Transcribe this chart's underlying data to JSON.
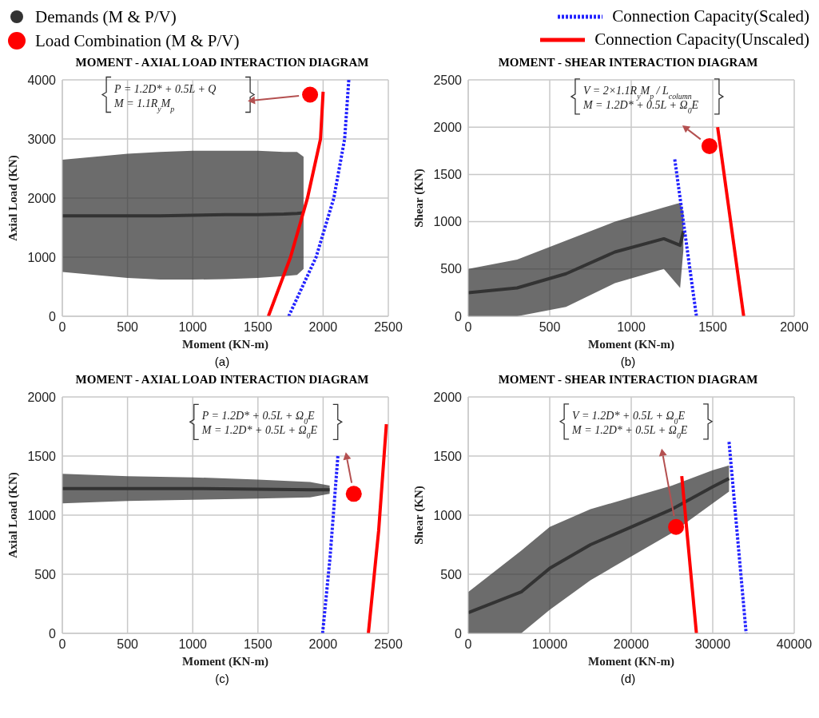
{
  "chart_data": [
    {
      "type": "line",
      "title": "MOMENT - AXIAL LOAD INTERACTION DIAGRAM",
      "xlabel": "Moment (KN-m)",
      "ylabel": "Axial Load (KN)",
      "xlim": [
        0,
        2500
      ],
      "xticks": [
        0,
        500,
        1000,
        1500,
        2000,
        2500
      ],
      "ylim": [
        0,
        4000
      ],
      "yticks": [
        0,
        1000,
        2000,
        3000,
        4000
      ],
      "grid": true,
      "legend": "top",
      "series": [
        {
          "name": "Demands (M & P/V)",
          "color": "#333333",
          "marker": "none",
          "x": [
            0,
            250,
            500,
            750,
            1000,
            1250,
            1500,
            1700,
            1800,
            1850
          ],
          "values": [
            1700,
            1700,
            1700,
            1700,
            1710,
            1720,
            1720,
            1730,
            1740,
            1750
          ],
          "lower": [
            750,
            700,
            650,
            620,
            620,
            630,
            650,
            680,
            700,
            800
          ],
          "upper": [
            2650,
            2700,
            2750,
            2780,
            2800,
            2800,
            2800,
            2780,
            2780,
            2700
          ]
        },
        {
          "type": "scatter",
          "name": "Load Combination (M & P/V)",
          "color": "#ff0000",
          "marker": "circle",
          "x": [
            1900
          ],
          "values": [
            3750
          ]
        },
        {
          "name": "Connection Capacity(Scaled)",
          "color": "#2323ff",
          "line_style": "dotted",
          "marker": "none",
          "x": [
            1736,
            1946,
            2082,
            2165,
            2197
          ],
          "values": [
            0,
            1000,
            2000,
            3000,
            4000
          ]
        },
        {
          "name": "Connection Capacity(Unscaled)",
          "color": "#ff0000",
          "line_style": "solid",
          "marker": "none",
          "x": [
            1580,
            1750,
            1880,
            1980,
            2000
          ],
          "values": [
            0,
            1000,
            2000,
            3000,
            3800
          ]
        }
      ],
      "annotations": [
        "P = 1.2D* + 0.5L + Q\nM = 1.1R$_{y}$M$_{p}$",
        "(a)"
      ]
    },
    {
      "type": "line",
      "title": "MOMENT - SHEAR INTERACTION DIAGRAM",
      "xlabel": "Moment (KN-m)",
      "ylabel": "Shear (KN)",
      "xlim": [
        0,
        2000
      ],
      "xticks": [
        0,
        500,
        1000,
        1500,
        2000
      ],
      "ylim": [
        0,
        2500
      ],
      "yticks": [
        0,
        500,
        1000,
        1500,
        2000,
        2500
      ],
      "grid": true,
      "series": [
        {
          "color": "#333333",
          "marker": "none",
          "x": [
            0,
            300,
            600,
            900,
            1200,
            1300,
            1320
          ],
          "values": [
            250,
            300,
            450,
            680,
            820,
            750,
            900
          ],
          "lower": [
            0,
            0,
            100,
            350,
            500,
            300,
            700
          ],
          "upper": [
            500,
            600,
            800,
            1000,
            1150,
            1200,
            1100
          ]
        },
        {
          "type": "scatter",
          "color": "#ff0000",
          "marker": "circle",
          "x": [
            1480
          ],
          "values": [
            1800
          ]
        },
        {
          "color": "#2323ff",
          "line_style": "dotted",
          "marker": "none",
          "x": [
            1267,
            1400
          ],
          "values": [
            1660,
            0
          ]
        },
        {
          "color": "#ff0000",
          "line_style": "solid",
          "marker": "none",
          "x": [
            1530,
            1690
          ],
          "values": [
            2000,
            0
          ]
        }
      ],
      "annotations": [
        "V = 2×1.1R$_{y}$M$_{p}$ / L$_{column}$\nM = 1.2D* + 0.5L + Ω$_{0}$E",
        "(b)"
      ]
    },
    {
      "type": "line",
      "title": "MOMENT - AXIAL LOAD INTERACTION DIAGRAM",
      "xlabel": "Moment (KN-m)",
      "ylabel": "Axial Load (KN)",
      "xlim": [
        0,
        2500
      ],
      "xticks": [
        0,
        500,
        1000,
        1500,
        2000,
        2500
      ],
      "ylim": [
        0,
        2000
      ],
      "yticks": [
        0,
        500,
        1000,
        1500,
        2000
      ],
      "grid": true,
      "series": [
        {
          "color": "#333333",
          "marker": "none",
          "x": [
            0,
            500,
            1000,
            1500,
            1900,
            2050
          ],
          "values": [
            1225,
            1225,
            1225,
            1220,
            1215,
            1215
          ],
          "lower": [
            1100,
            1120,
            1130,
            1140,
            1150,
            1180
          ],
          "upper": [
            1350,
            1330,
            1320,
            1300,
            1280,
            1250
          ]
        },
        {
          "type": "scatter",
          "color": "#ff0000",
          "marker": "circle",
          "x": [
            2235
          ],
          "values": [
            1180
          ]
        },
        {
          "color": "#2323ff",
          "line_style": "dotted",
          "marker": "none",
          "x": [
            1996,
            2053,
            2113
          ],
          "values": [
            0,
            640,
            1500
          ]
        },
        {
          "color": "#ff0000",
          "line_style": "solid",
          "marker": "none",
          "x": [
            2347,
            2426,
            2485
          ],
          "values": [
            0,
            870,
            1770
          ]
        }
      ],
      "annotations": [
        "P = 1.2D* + 0.5L + Ω$_{0}$E\nM = 1.2D* + 0.5L + Ω$_{0}$E",
        "(c)"
      ]
    },
    {
      "type": "line",
      "title": "MOMENT - SHEAR INTERACTION DIAGRAM",
      "xlabel": "Moment (KN-m)",
      "ylabel": "Shear (KN)",
      "xlim": [
        0,
        40000
      ],
      "xticks": [
        0,
        10000,
        20000,
        30000,
        40000
      ],
      "ylim": [
        0,
        2000
      ],
      "yticks": [
        0,
        500,
        1000,
        1500,
        2000
      ],
      "grid": true,
      "series": [
        {
          "color": "#333333",
          "marker": "none",
          "x": [
            0,
            6500,
            10000,
            15000,
            20000,
            25000,
            30000,
            32000
          ],
          "values": [
            175,
            350,
            550,
            750,
            900,
            1050,
            1240,
            1310
          ],
          "lower": [
            0,
            0,
            200,
            450,
            650,
            850,
            1100,
            1200
          ],
          "upper": [
            350,
            700,
            900,
            1050,
            1150,
            1250,
            1380,
            1420
          ]
        },
        {
          "type": "scatter",
          "color": "#ff0000",
          "marker": "circle",
          "x": [
            25500
          ],
          "values": [
            900
          ]
        },
        {
          "color": "#2323ff",
          "line_style": "dotted",
          "marker": "none",
          "x": [
            32000,
            34100
          ],
          "values": [
            1620,
            0
          ]
        },
        {
          "color": "#ff0000",
          "line_style": "solid",
          "marker": "none",
          "x": [
            26200,
            28000
          ],
          "values": [
            1330,
            0
          ]
        }
      ],
      "annotations": [
        "V = 1.2D* + 0.5L + Ω$_{0}$E\nM = 1.2D* + 0.5L + Ω$_{0}$E",
        "(d)"
      ]
    }
  ]
}
